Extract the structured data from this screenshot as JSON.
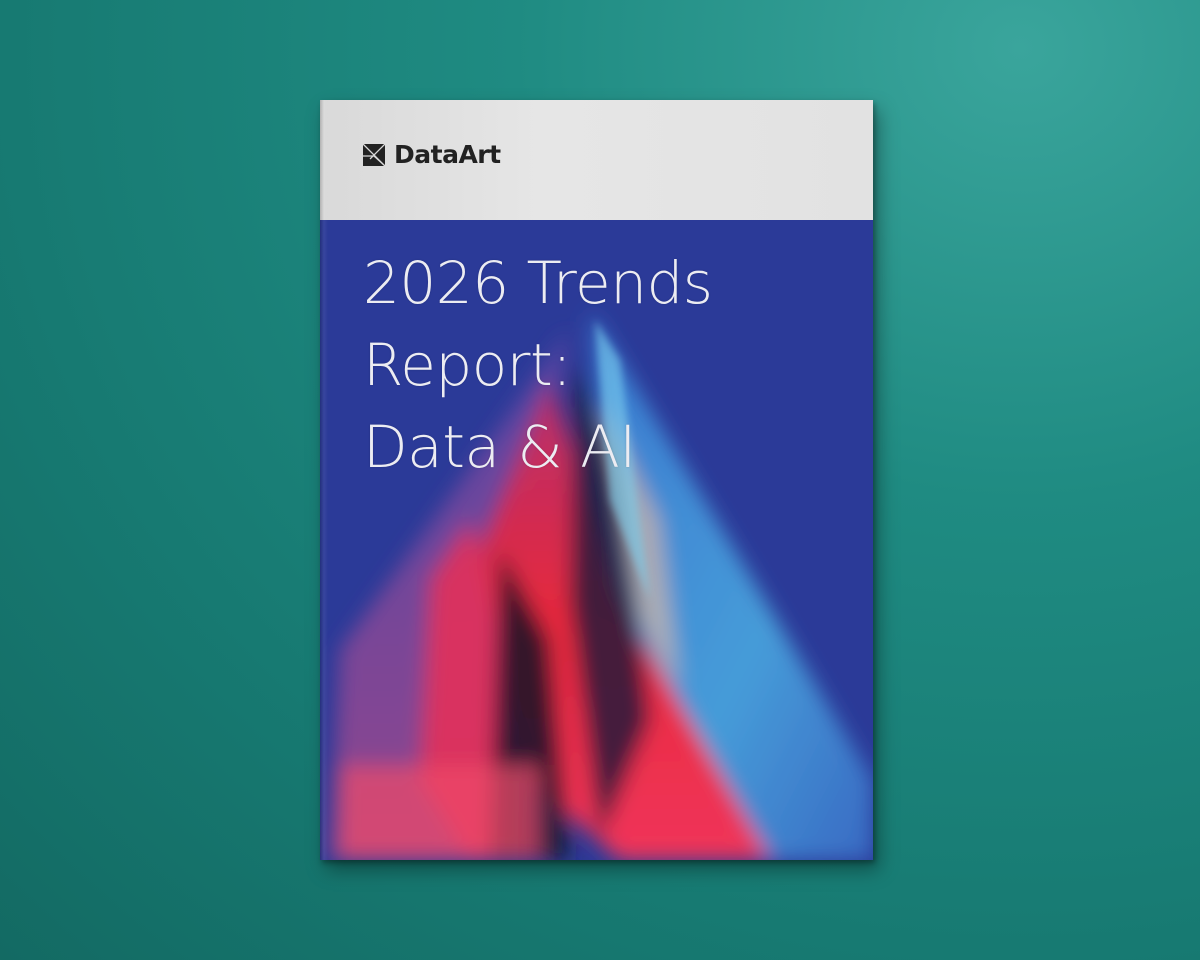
{
  "background_color": "#1f8b82",
  "book": {
    "brand": {
      "name": "DataArt",
      "icon": "dataart-logo-icon"
    },
    "title_lines": [
      "2026 Trends",
      "Report:",
      "Data & AI"
    ],
    "colors": {
      "cover_blue": "#2b3a98",
      "band": "#e2e2e2",
      "accent_red": "#e8283c",
      "accent_cyan": "#4aa7e0"
    }
  }
}
